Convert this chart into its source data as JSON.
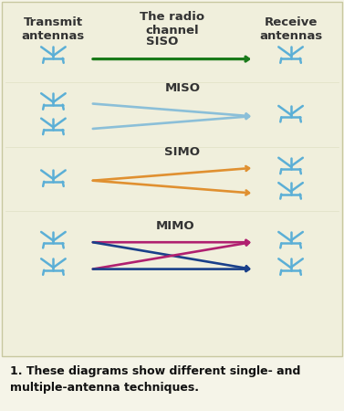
{
  "bg_outer": "#f5f4e8",
  "bg_box": "#f0efdc",
  "ant_color": "#5bafd6",
  "border_color": "#c8c8a0",
  "label_color": "#333333",
  "caption_color": "#111111",
  "left_label": "Transmit\nantennas",
  "center_label": "The radio\nchannel",
  "right_label": "Receive\nantennas",
  "caption": "1. These diagrams show different single- and\nmultiple-antenna techniques.",
  "siso_color": "#1a7a1a",
  "miso_color": "#8bbfd8",
  "simo_color": "#e09030",
  "mimo_color1": "#b02070",
  "mimo_color2": "#1a408a",
  "label_fontsize": 9.5,
  "section_label_fontsize": 9.5,
  "caption_fontsize": 9.0
}
